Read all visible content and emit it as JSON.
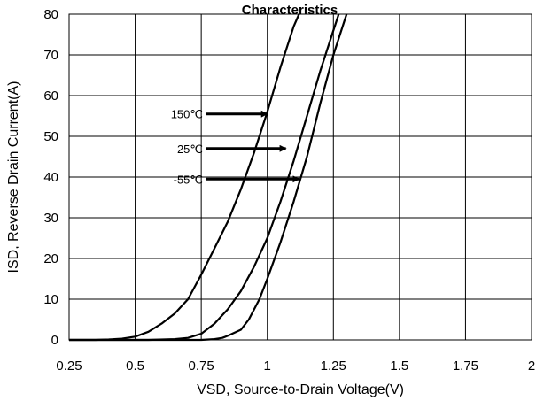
{
  "chart_data": {
    "type": "line",
    "title": "Characteristics",
    "xlabel": "VSD, Source-to-Drain Voltage(V)",
    "ylabel": "ISD, Reverse Drain Current(A)",
    "xlim": [
      0.25,
      2
    ],
    "ylim": [
      0,
      80
    ],
    "xticks": [
      0.25,
      0.5,
      0.75,
      1,
      1.25,
      1.5,
      1.75,
      2
    ],
    "xtick_labels": [
      "0.25",
      "0.5",
      "0.75",
      "1",
      "1.25",
      "1.5",
      "1.75",
      "2"
    ],
    "yticks": [
      0,
      10,
      20,
      30,
      40,
      50,
      60,
      70,
      80
    ],
    "ytick_labels": [
      "0",
      "10",
      "20",
      "30",
      "40",
      "50",
      "60",
      "70",
      "80"
    ],
    "grid": true,
    "line_color": "#000000",
    "series": [
      {
        "name": "150℃",
        "points": [
          [
            0.25,
            0
          ],
          [
            0.35,
            0
          ],
          [
            0.4,
            0.1
          ],
          [
            0.45,
            0.3
          ],
          [
            0.5,
            0.8
          ],
          [
            0.55,
            2
          ],
          [
            0.6,
            4
          ],
          [
            0.65,
            6.5
          ],
          [
            0.7,
            10
          ],
          [
            0.75,
            16
          ],
          [
            0.8,
            22.5
          ],
          [
            0.85,
            29
          ],
          [
            0.9,
            37
          ],
          [
            0.95,
            46
          ],
          [
            1.0,
            56
          ],
          [
            1.05,
            67
          ],
          [
            1.1,
            77
          ],
          [
            1.12,
            80
          ]
        ]
      },
      {
        "name": "25℃",
        "points": [
          [
            0.25,
            0
          ],
          [
            0.55,
            0
          ],
          [
            0.65,
            0.2
          ],
          [
            0.7,
            0.5
          ],
          [
            0.75,
            1.5
          ],
          [
            0.8,
            4
          ],
          [
            0.85,
            7.5
          ],
          [
            0.9,
            12
          ],
          [
            0.95,
            18
          ],
          [
            1.0,
            25
          ],
          [
            1.05,
            34
          ],
          [
            1.1,
            44
          ],
          [
            1.15,
            55
          ],
          [
            1.2,
            66
          ],
          [
            1.25,
            76
          ],
          [
            1.27,
            80
          ]
        ]
      },
      {
        "name": "-55℃",
        "points": [
          [
            0.25,
            0
          ],
          [
            0.75,
            0
          ],
          [
            0.8,
            0.2
          ],
          [
            0.83,
            0.5
          ],
          [
            0.85,
            1
          ],
          [
            0.9,
            2.5
          ],
          [
            0.93,
            5
          ],
          [
            0.97,
            10
          ],
          [
            1.0,
            15
          ],
          [
            1.05,
            24
          ],
          [
            1.1,
            34
          ],
          [
            1.15,
            45
          ],
          [
            1.2,
            58
          ],
          [
            1.25,
            70
          ],
          [
            1.3,
            80
          ]
        ]
      }
    ],
    "annotations": [
      {
        "label": "150℃",
        "x_end": 1.0,
        "y": 55.5
      },
      {
        "label": "25℃",
        "x_end": 1.07,
        "y": 47
      },
      {
        "label": "-55℃",
        "x_end": 1.12,
        "y": 39.5
      }
    ]
  }
}
